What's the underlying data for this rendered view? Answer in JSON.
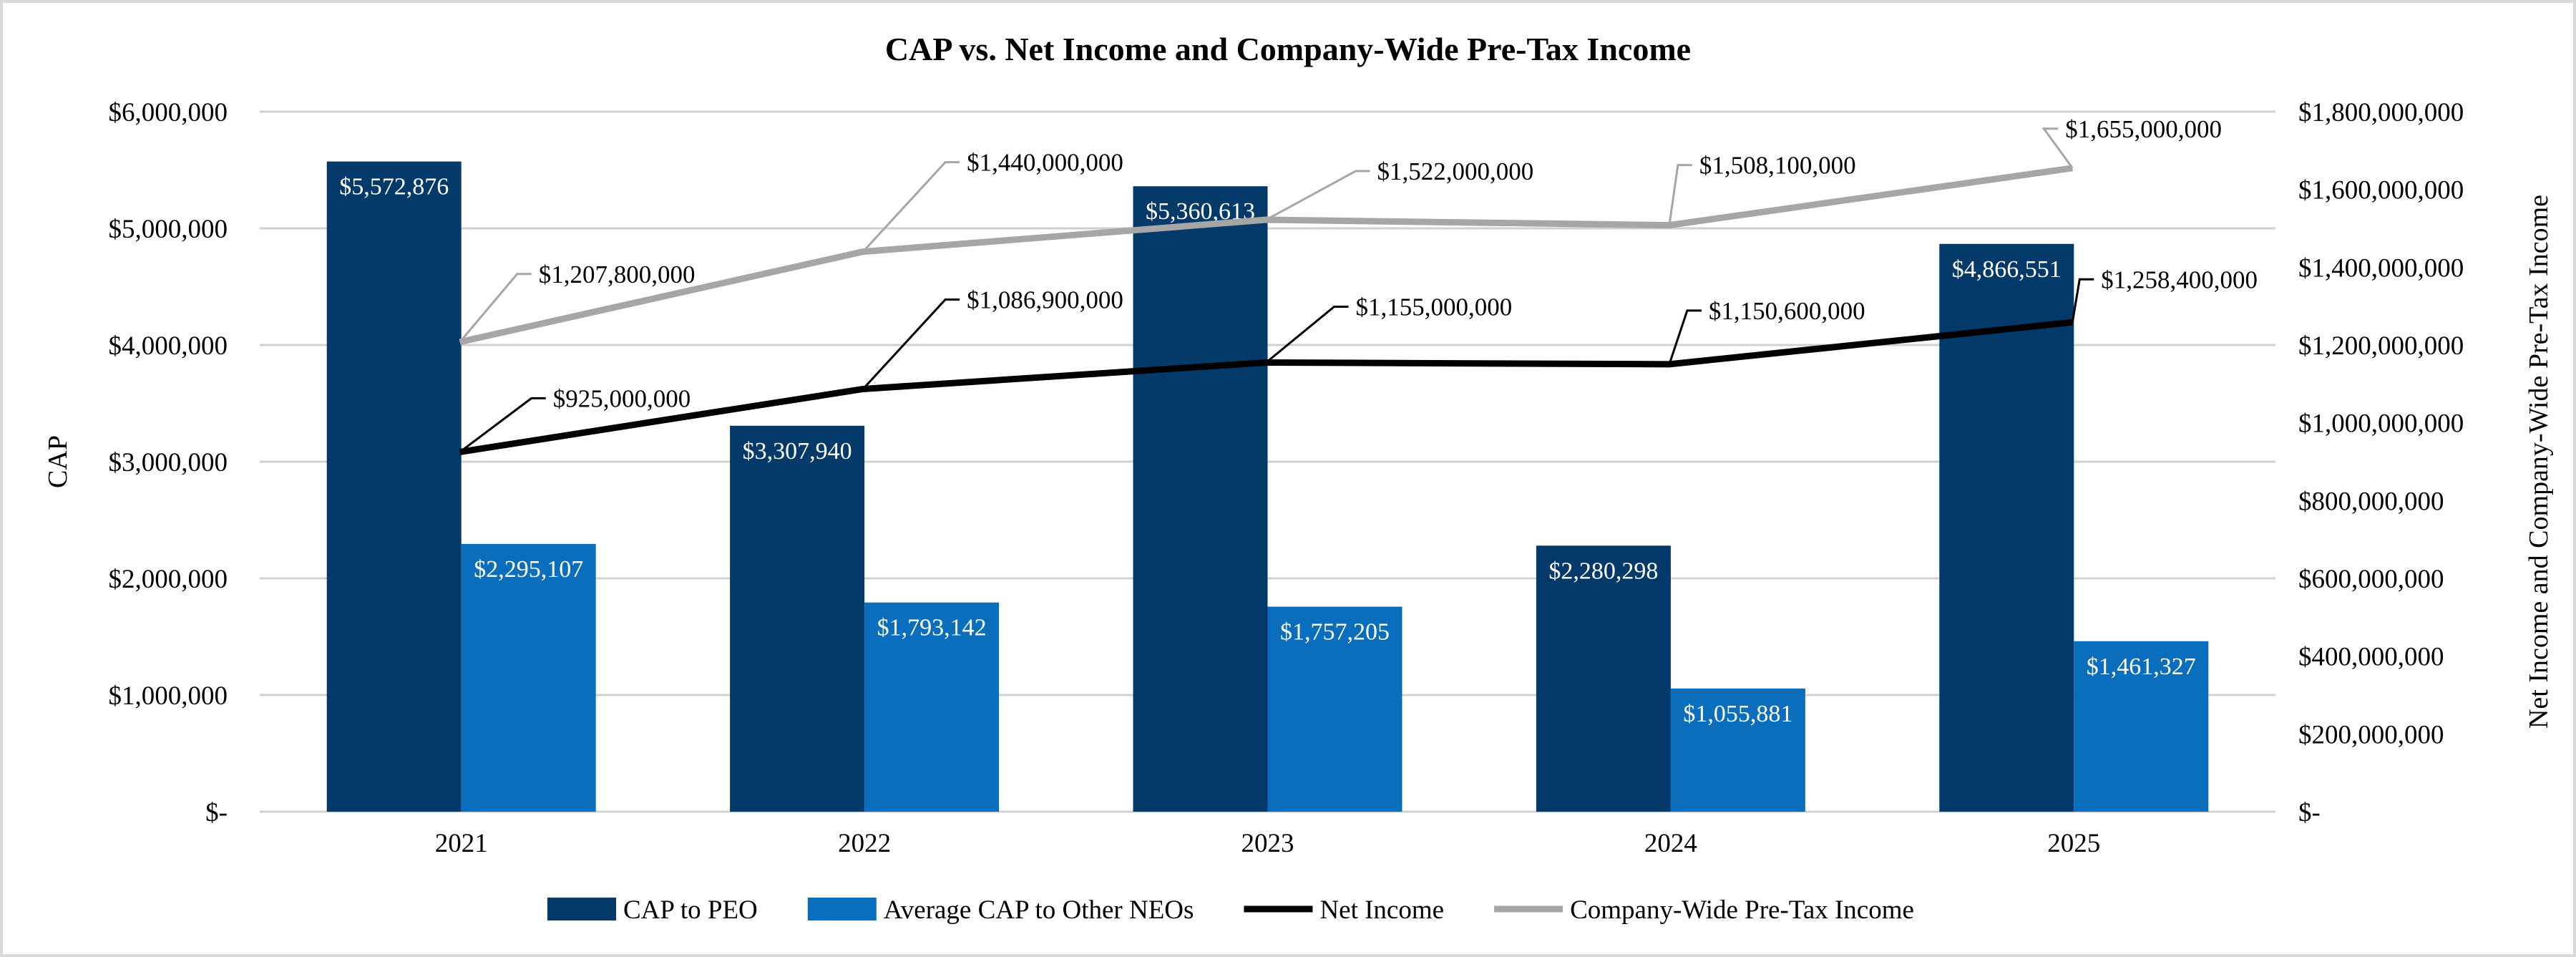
{
  "chart_data": {
    "type": "bar+line",
    "title": "CAP vs. Net Income and Company-Wide Pre-Tax Income",
    "categories": [
      "2021",
      "2022",
      "2023",
      "2024",
      "2025"
    ],
    "ylabel": "CAP",
    "y2label": "Net Income and Company-Wide Pre-Tax Income",
    "ylim": [
      0,
      6000000
    ],
    "y2lim": [
      0,
      1800000000
    ],
    "yticks": [
      "$-",
      "$1,000,000",
      "$2,000,000",
      "$3,000,000",
      "$4,000,000",
      "$5,000,000",
      "$6,000,000"
    ],
    "y2ticks": [
      "$-",
      "$200,000,000",
      "$400,000,000",
      "$600,000,000",
      "$800,000,000",
      "$1,000,000,000",
      "$1,200,000,000",
      "$1,400,000,000",
      "$1,600,000,000",
      "$1,800,000,000"
    ],
    "grid": true,
    "legend_position": "bottom",
    "series": [
      {
        "name": "CAP to PEO",
        "type": "bar",
        "axis": "left",
        "color": "#033a6a",
        "values": [
          5572876,
          3307940,
          5360613,
          2280298,
          4866551
        ],
        "labels": [
          "$5,572,876",
          "$3,307,940",
          "$5,360,613",
          "$2,280,298",
          "$4,866,551"
        ]
      },
      {
        "name": "Average CAP to Other NEOs",
        "type": "bar",
        "axis": "left",
        "color": "#0a6ebd",
        "values": [
          2295107,
          1793142,
          1757205,
          1055881,
          1461327
        ],
        "labels": [
          "$2,295,107",
          "$1,793,142",
          "$1,757,205",
          "$1,055,881",
          "$1,461,327"
        ]
      },
      {
        "name": "Net Income",
        "type": "line",
        "axis": "right",
        "color": "#000000",
        "values": [
          925000000,
          1086900000,
          1155000000,
          1150600000,
          1258400000
        ],
        "labels": [
          "$925,000,000",
          "$1,086,900,000",
          "$1,155,000,000",
          "$1,150,600,000",
          "$1,258,400,000"
        ]
      },
      {
        "name": "Company-Wide Pre-Tax Income",
        "type": "line",
        "axis": "right",
        "color": "#a6a6a6",
        "values": [
          1207800000,
          1440000000,
          1522000000,
          1508100000,
          1655000000
        ],
        "labels": [
          "$1,207,800,000",
          "$1,440,000,000",
          "$1,522,000,000",
          "$1,508,100,000",
          "$1,655,000,000"
        ]
      }
    ]
  }
}
